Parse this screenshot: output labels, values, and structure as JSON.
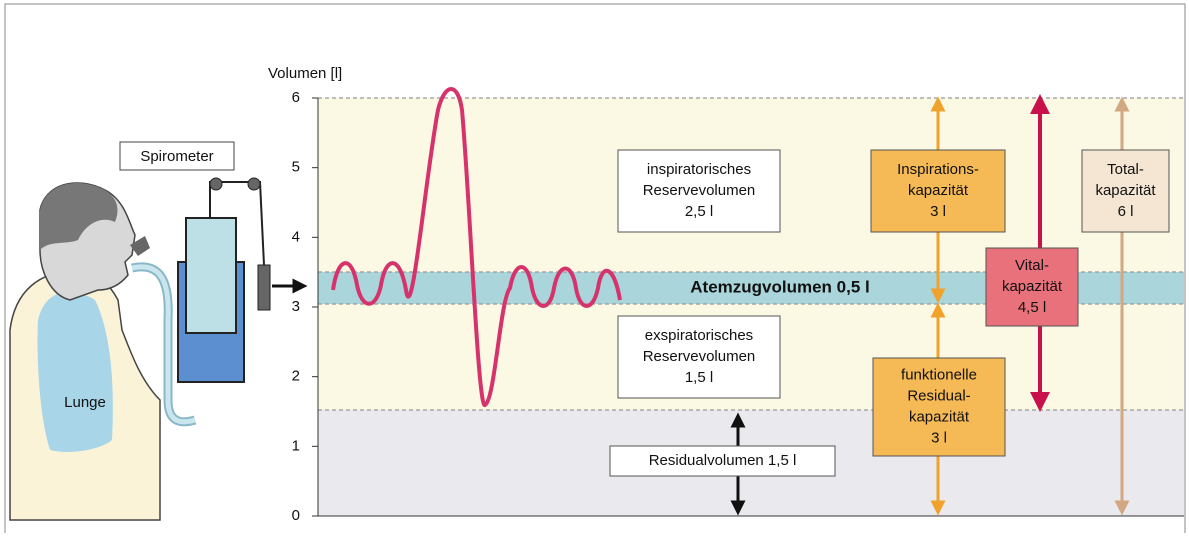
{
  "axis": {
    "label": "Volumen [l]",
    "yticks": [
      0,
      1,
      2,
      3,
      4,
      5,
      6
    ]
  },
  "figure": {
    "spirometer": "Spirometer",
    "lunge": "Lunge"
  },
  "tidal": "Atemzugvolumen 0,5 l",
  "boxes": [
    {
      "lines": [
        "inspiratorisches",
        "Reservevolumen",
        "2,5 l"
      ]
    },
    {
      "lines": [
        "exspiratorisches",
        "Reservevolumen",
        "1,5 l"
      ]
    },
    {
      "lines": [
        "Residualvolumen 1,5 l"
      ]
    },
    {
      "lines": [
        "Inspirations-",
        "kapazität",
        "3 l"
      ]
    },
    {
      "lines": [
        "funktionelle",
        "Residual-",
        "kapazität",
        "3 l"
      ]
    },
    {
      "lines": [
        "Vital-",
        "kapazität",
        "4,5 l"
      ]
    },
    {
      "lines": [
        "Total-",
        "kapazität",
        "6 l"
      ]
    }
  ]
}
